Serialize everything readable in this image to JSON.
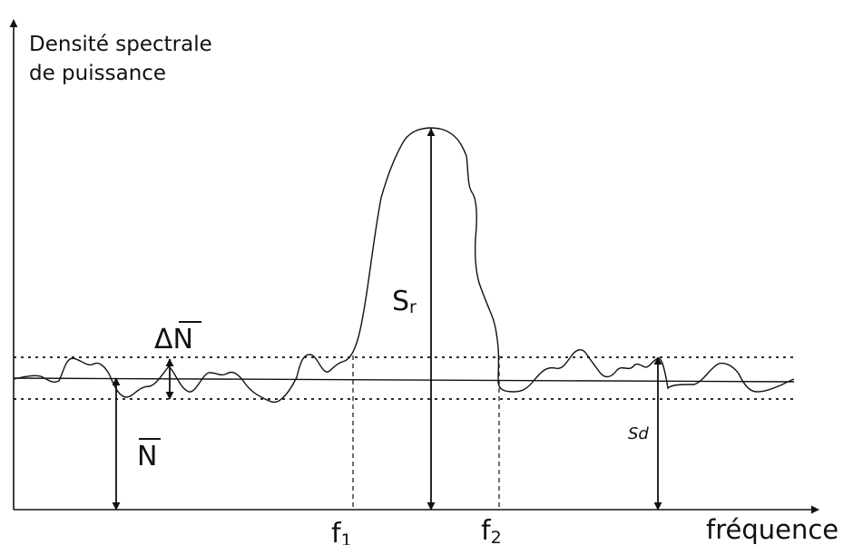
{
  "y_axis_label_line1": "Densité spectrale",
  "y_axis_label_line2": "de puissance",
  "x_axis_label": "fréquence",
  "delta_n_label": "ΔN",
  "n_bar_label": "N",
  "sr_label": {
    "main": "S",
    "sub": "r"
  },
  "sd_label": "Sd",
  "f1_label": {
    "main": "f",
    "sub": "1"
  },
  "f2_label": {
    "main": "f",
    "sub": "2"
  }
}
